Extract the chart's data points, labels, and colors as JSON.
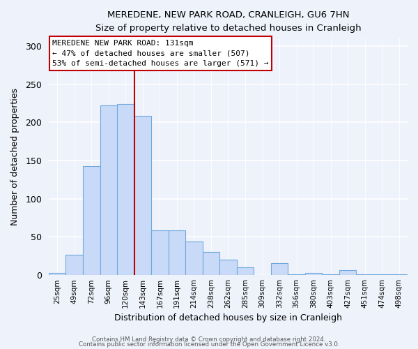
{
  "title": "MEREDENE, NEW PARK ROAD, CRANLEIGH, GU6 7HN",
  "subtitle": "Size of property relative to detached houses in Cranleigh",
  "xlabel": "Distribution of detached houses by size in Cranleigh",
  "ylabel": "Number of detached properties",
  "bar_color": "#c9daf8",
  "bar_edge_color": "#6fa8dc",
  "categories": [
    "25sqm",
    "49sqm",
    "72sqm",
    "96sqm",
    "120sqm",
    "143sqm",
    "167sqm",
    "191sqm",
    "214sqm",
    "238sqm",
    "262sqm",
    "285sqm",
    "309sqm",
    "332sqm",
    "356sqm",
    "380sqm",
    "403sqm",
    "427sqm",
    "451sqm",
    "474sqm",
    "498sqm"
  ],
  "values": [
    3,
    27,
    143,
    222,
    224,
    209,
    59,
    59,
    44,
    30,
    20,
    10,
    0,
    16,
    1,
    3,
    1,
    7,
    1,
    1,
    1
  ],
  "ylim": [
    0,
    310
  ],
  "yticks": [
    0,
    50,
    100,
    150,
    200,
    250,
    300
  ],
  "vline_x": 4.5,
  "vline_color": "#c00000",
  "annotation_box_text": "MEREDENE NEW PARK ROAD: 131sqm\n← 47% of detached houses are smaller (507)\n53% of semi-detached houses are larger (571) →",
  "footer_line1": "Contains HM Land Registry data © Crown copyright and database right 2024.",
  "footer_line2": "Contains public sector information licensed under the Open Government Licence v3.0.",
  "background_color": "#eef2fb"
}
